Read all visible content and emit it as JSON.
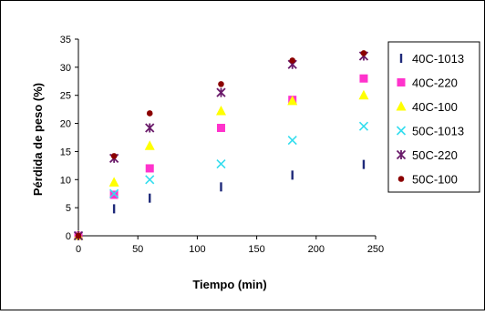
{
  "chart_data": {
    "type": "scatter",
    "title": "",
    "xlabel": "Tiempo (min)",
    "ylabel": "Pérdida de peso (%)",
    "xlim": [
      0,
      250
    ],
    "ylim": [
      0,
      35
    ],
    "xticks": [
      "0",
      "50",
      "100",
      "150",
      "200",
      "250"
    ],
    "yticks": [
      "0",
      "5",
      "10",
      "15",
      "20",
      "25",
      "30",
      "35"
    ],
    "grid": false,
    "legend_position": "right",
    "series": [
      {
        "name": "40C-1013",
        "marker": "bar",
        "color": "#1f2a7a",
        "x": [
          0,
          30,
          60,
          120,
          180,
          240
        ],
        "y": [
          0,
          4.8,
          6.7,
          8.7,
          10.8,
          12.7
        ]
      },
      {
        "name": "40C-220",
        "marker": "square",
        "color": "#ff33cc",
        "x": [
          0,
          30,
          60,
          120,
          180,
          240
        ],
        "y": [
          0,
          7.3,
          12.0,
          19.2,
          24.2,
          28.0
        ]
      },
      {
        "name": "40C-100",
        "marker": "triangle",
        "color": "#ffff00",
        "x": [
          0,
          30,
          60,
          120,
          180,
          240
        ],
        "y": [
          0,
          9.5,
          16.0,
          22.2,
          24.0,
          25.0
        ]
      },
      {
        "name": "50C-1013",
        "marker": "x",
        "color": "#33ddee",
        "x": [
          0,
          30,
          60,
          120,
          180,
          240
        ],
        "y": [
          0,
          7.5,
          10.0,
          12.8,
          17.0,
          19.5
        ]
      },
      {
        "name": "50C-220",
        "marker": "star",
        "color": "#6a1a6a",
        "x": [
          0,
          30,
          60,
          120,
          180,
          240
        ],
        "y": [
          0,
          13.8,
          19.2,
          25.5,
          30.5,
          32.0
        ]
      },
      {
        "name": "50C-100",
        "marker": "circle",
        "color": "#8b0000",
        "x": [
          0,
          30,
          60,
          120,
          180,
          240
        ],
        "y": [
          0,
          14.2,
          21.8,
          27.0,
          31.2,
          32.5
        ]
      }
    ]
  }
}
